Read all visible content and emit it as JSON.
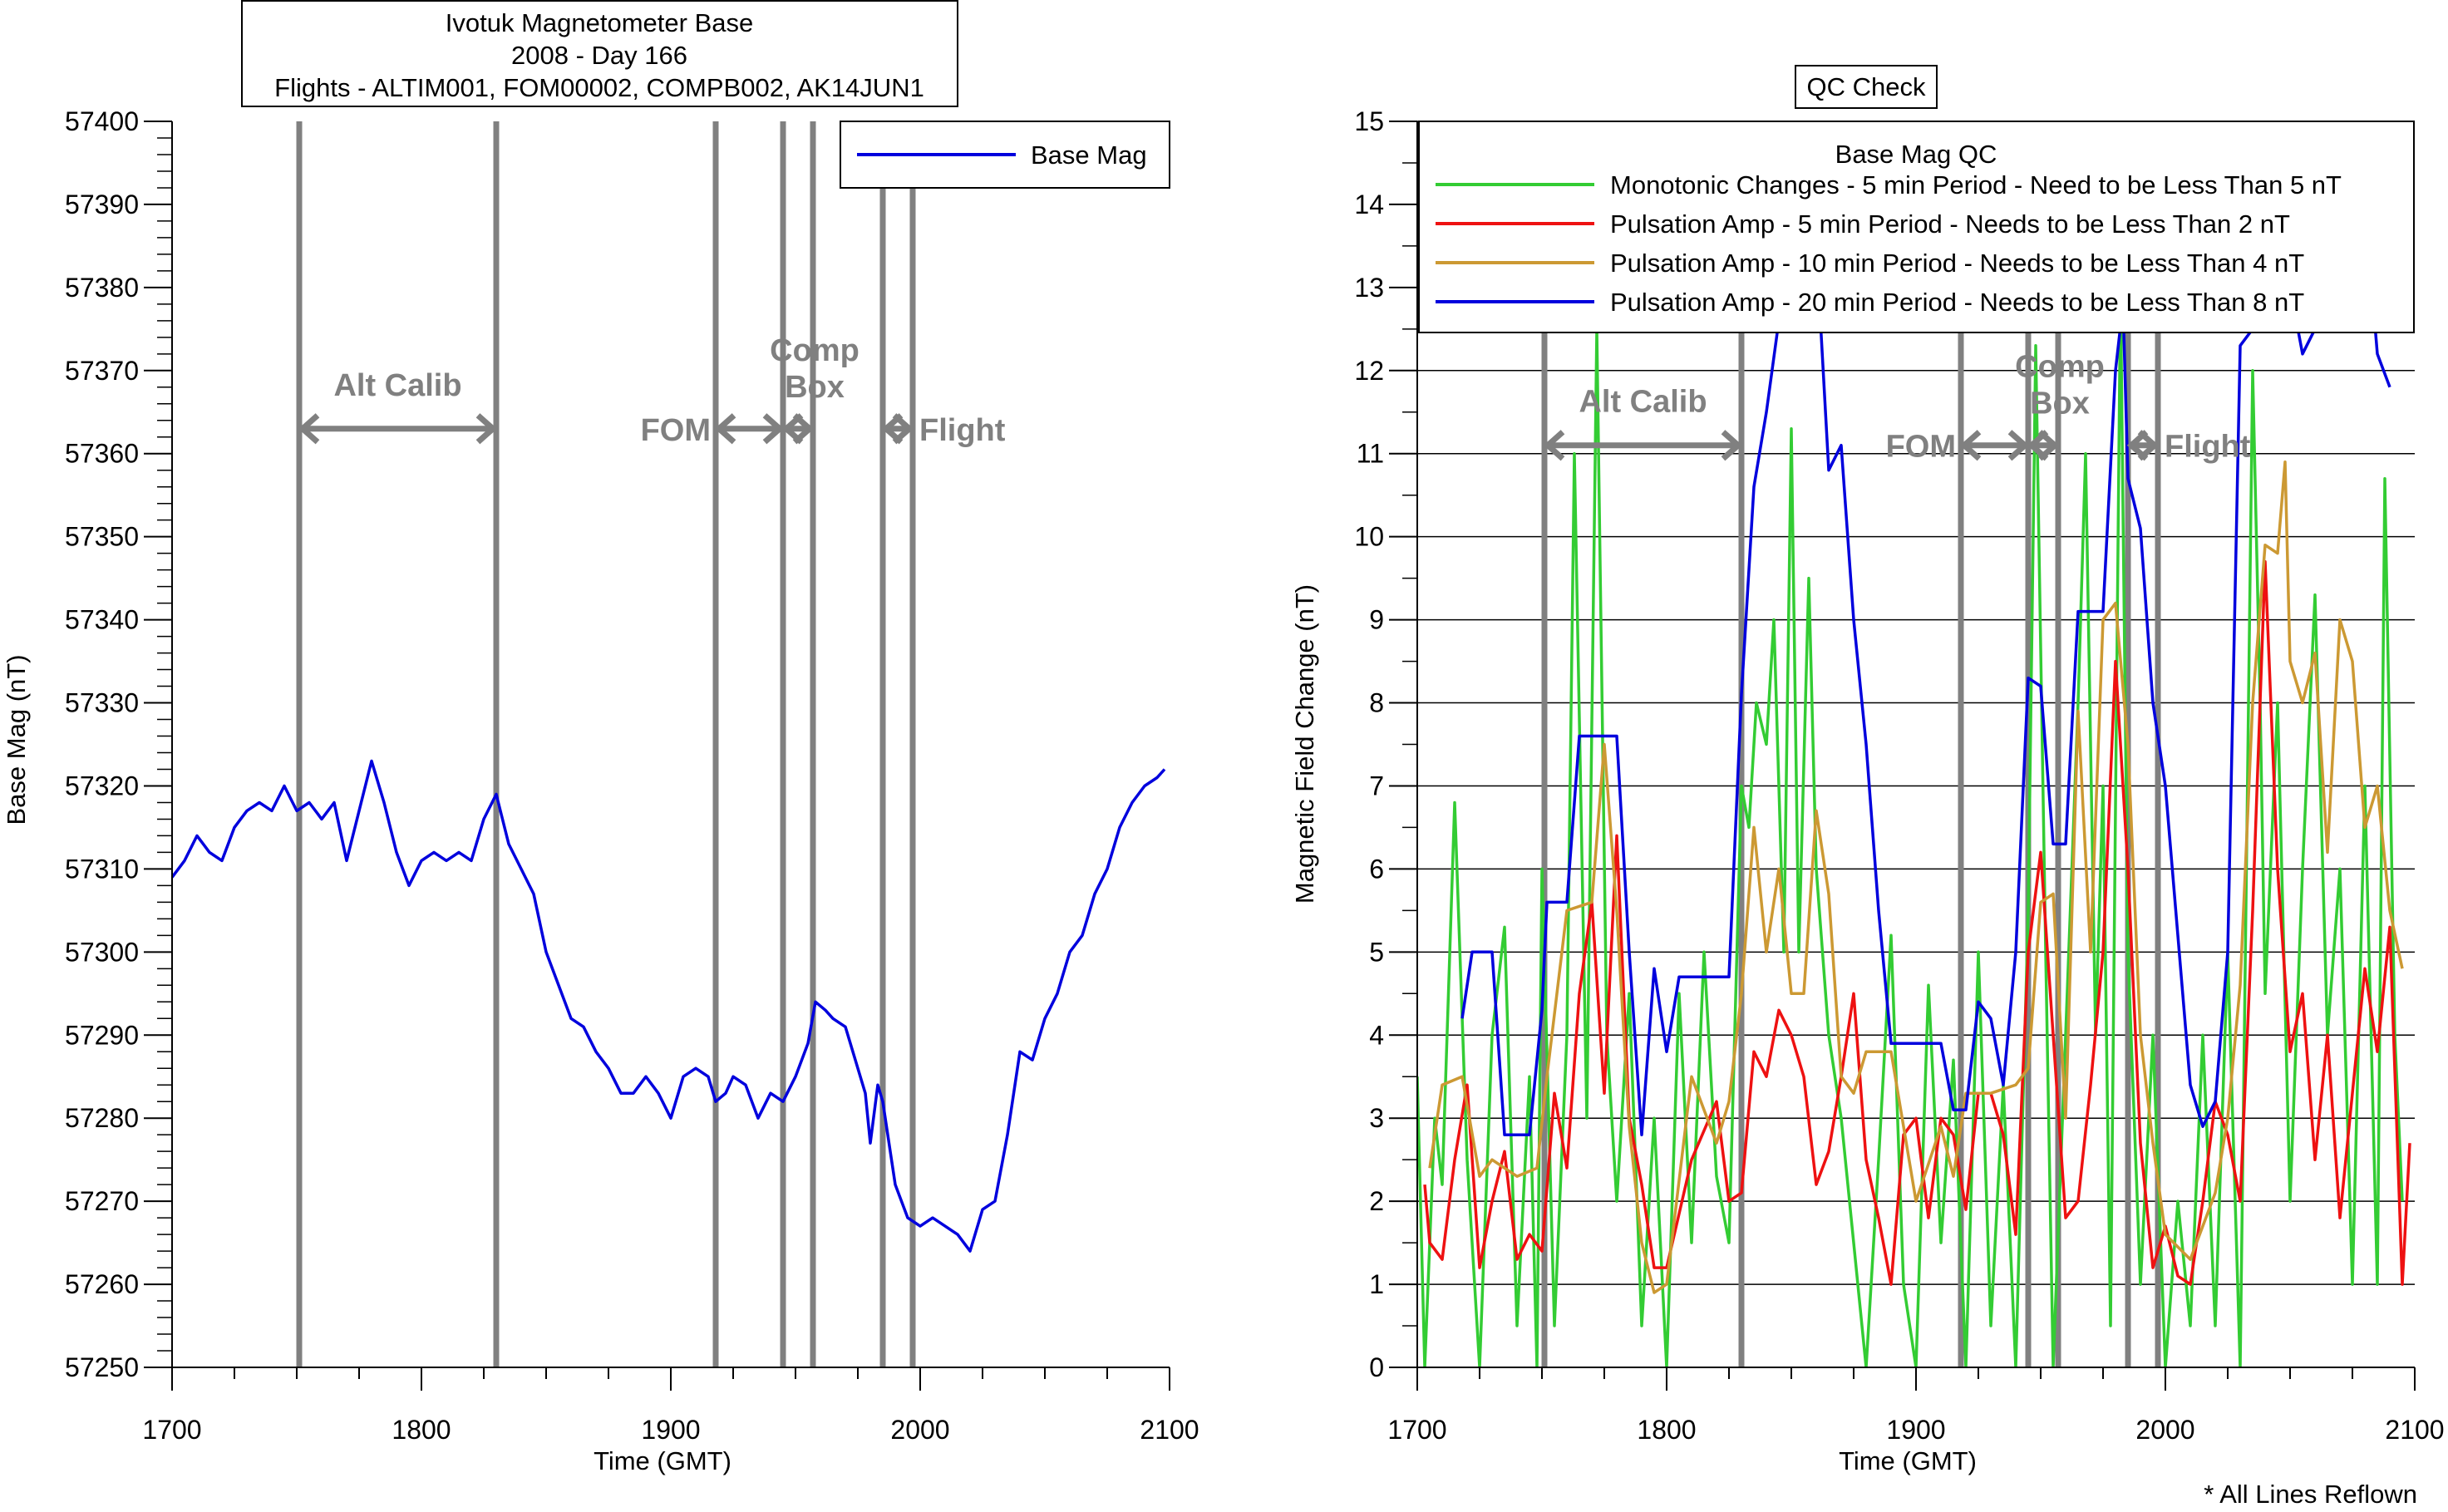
{
  "footnote": "* All Lines Reflown",
  "chart_data": [
    {
      "type": "line",
      "title_lines": [
        "Ivotuk Magnetometer Base",
        "2008 - Day 166",
        "Flights - ALTIM001, FOM00002, COMPB002, AK14JUN1"
      ],
      "xlabel": "Time (GMT)",
      "ylabel": "Base Mag (nT)",
      "xlim": [
        1700,
        2100
      ],
      "ylim": [
        57250,
        57400
      ],
      "xticks": [
        1700,
        1800,
        1900,
        2000,
        2100
      ],
      "yticks": [
        57250,
        57260,
        57270,
        57280,
        57290,
        57300,
        57310,
        57320,
        57330,
        57340,
        57350,
        57360,
        57370,
        57380,
        57390,
        57400
      ],
      "grid": false,
      "legend_placement": "top-right",
      "series": [
        {
          "name": "Base Mag",
          "color": "#0000dd",
          "x": [
            1700,
            1705,
            1710,
            1715,
            1720,
            1725,
            1730,
            1735,
            1740,
            1745,
            1750,
            1755,
            1760,
            1765,
            1770,
            1775,
            1780,
            1785,
            1790,
            1795,
            1800,
            1805,
            1810,
            1815,
            1820,
            1825,
            1830,
            1835,
            1840,
            1845,
            1850,
            1855,
            1860,
            1865,
            1870,
            1875,
            1880,
            1885,
            1890,
            1895,
            1900,
            1905,
            1910,
            1915,
            1918,
            1922,
            1925,
            1930,
            1935,
            1940,
            1945,
            1950,
            1955,
            1958,
            1962,
            1965,
            1970,
            1975,
            1978,
            1980,
            1983,
            1985,
            1988,
            1990,
            1995,
            2000,
            2005,
            2010,
            2015,
            2020,
            2025,
            2030,
            2035,
            2040,
            2045,
            2050,
            2055,
            2060,
            2065,
            2070,
            2075,
            2080,
            2085,
            2090,
            2095,
            2098
          ],
          "y": [
            57309,
            57311,
            57314,
            57312,
            57311,
            57315,
            57317,
            57318,
            57317,
            57320,
            57317,
            57318,
            57316,
            57318,
            57311,
            57317,
            57323,
            57318,
            57312,
            57308,
            57311,
            57312,
            57311,
            57312,
            57311,
            57316,
            57319,
            57313,
            57310,
            57307,
            57300,
            57296,
            57292,
            57291,
            57288,
            57286,
            57283,
            57283,
            57285,
            57283,
            57280,
            57285,
            57286,
            57285,
            57282,
            57283,
            57285,
            57284,
            57280,
            57283,
            57282,
            57285,
            57289,
            57294,
            57293,
            57292,
            57291,
            57286,
            57283,
            57277,
            57284,
            57282,
            57276,
            57272,
            57268,
            57267,
            57268,
            57267,
            57266,
            57264,
            57269,
            57270,
            57278,
            57288,
            57287,
            57292,
            57295,
            57300,
            57302,
            57307,
            57310,
            57315,
            57318,
            57320,
            57321,
            57322
          ]
        }
      ],
      "vertical_markers": [
        1751,
        1830,
        1918,
        1945,
        1957,
        1985,
        1997
      ],
      "marker_color": "#808080",
      "annotations": [
        {
          "text": "Alt Calib",
          "from": 1751,
          "to": 1830,
          "y": 57363
        },
        {
          "text": "FOM",
          "from": 1918,
          "to": 1945,
          "y": 57363
        },
        {
          "text": "Comp Box",
          "from": 1945,
          "to": 1957,
          "y": 57363
        },
        {
          "text": "Flight",
          "from": 1985,
          "to": 1997,
          "y": 57363
        }
      ]
    },
    {
      "type": "line",
      "title": "QC Check",
      "legend_title": "Base Mag QC",
      "xlabel": "Time (GMT)",
      "ylabel": "Magnetic Field Change (nT)",
      "xlim": [
        1700,
        2100
      ],
      "ylim": [
        0,
        15
      ],
      "xticks": [
        1700,
        1800,
        1900,
        2000,
        2100
      ],
      "yticks": [
        0,
        1,
        2,
        3,
        4,
        5,
        6,
        7,
        8,
        9,
        10,
        11,
        12,
        13,
        14,
        15
      ],
      "grid": true,
      "legend_placement": "top",
      "series": [
        {
          "name": "Monotonic Changes - 5 min Period - Need to be Less Than 5 nT",
          "color": "#33cc33",
          "x": [
            1700,
            1703,
            1707,
            1710,
            1715,
            1720,
            1725,
            1730,
            1735,
            1740,
            1745,
            1748,
            1750,
            1755,
            1760,
            1763,
            1768,
            1772,
            1776,
            1780,
            1785,
            1790,
            1795,
            1800,
            1805,
            1810,
            1815,
            1820,
            1825,
            1830,
            1833,
            1836,
            1840,
            1843,
            1847,
            1850,
            1853,
            1857,
            1860,
            1865,
            1870,
            1875,
            1880,
            1885,
            1890,
            1895,
            1900,
            1905,
            1910,
            1915,
            1920,
            1925,
            1930,
            1935,
            1940,
            1945,
            1948,
            1952,
            1955,
            1960,
            1965,
            1968,
            1972,
            1975,
            1978,
            1982,
            1985,
            1990,
            1995,
            2000,
            2005,
            2010,
            2015,
            2020,
            2025,
            2030,
            2035,
            2038,
            2040,
            2045,
            2050,
            2055,
            2060,
            2065,
            2070,
            2075,
            2080,
            2085,
            2088,
            2092,
            2095
          ],
          "y": [
            3.5,
            0,
            3,
            2.2,
            6.8,
            2.5,
            0,
            4,
            5.3,
            0.5,
            3.5,
            0,
            6,
            0.5,
            4,
            11,
            3,
            12.5,
            4,
            2,
            4.5,
            0.5,
            3,
            0,
            4.5,
            1.5,
            5,
            2.3,
            1.5,
            7,
            6.5,
            8,
            7.5,
            9,
            5,
            11.3,
            5,
            9.5,
            6,
            4,
            3,
            1.5,
            0,
            2.5,
            5.2,
            1,
            0,
            4.6,
            1.5,
            3.7,
            0,
            5,
            0.5,
            3.4,
            0,
            5.5,
            12.3,
            5,
            0,
            4,
            8,
            11,
            4,
            7,
            0.5,
            13,
            5,
            1,
            4,
            0,
            2,
            0.5,
            4,
            0.5,
            5,
            0,
            12,
            8,
            4.5,
            8,
            2,
            6,
            9.3,
            4,
            6,
            1,
            7,
            1,
            10.7,
            4,
            2
          ]
        },
        {
          "name": "Pulsation Amp - 5 min Period - Needs to be Less Than 2 nT",
          "color": "#ee1111",
          "x": [
            1703,
            1705,
            1710,
            1715,
            1720,
            1725,
            1730,
            1735,
            1740,
            1745,
            1750,
            1755,
            1760,
            1765,
            1770,
            1775,
            1780,
            1785,
            1790,
            1795,
            1800,
            1810,
            1820,
            1825,
            1830,
            1835,
            1840,
            1845,
            1850,
            1855,
            1860,
            1865,
            1870,
            1875,
            1880,
            1885,
            1890,
            1895,
            1900,
            1905,
            1910,
            1915,
            1920,
            1925,
            1930,
            1935,
            1940,
            1945,
            1950,
            1955,
            1960,
            1965,
            1970,
            1975,
            1980,
            1985,
            1990,
            1995,
            2000,
            2005,
            2010,
            2015,
            2020,
            2025,
            2030,
            2035,
            2040,
            2045,
            2050,
            2055,
            2060,
            2065,
            2070,
            2075,
            2080,
            2085,
            2090,
            2095,
            2098
          ],
          "y": [
            2.2,
            1.5,
            1.3,
            2.5,
            3.4,
            1.2,
            2,
            2.6,
            1.3,
            1.6,
            1.4,
            3.3,
            2.4,
            4.5,
            5.6,
            3.3,
            6.4,
            3,
            2.2,
            1.2,
            1.2,
            2.5,
            3.2,
            2,
            2.1,
            3.8,
            3.5,
            4.3,
            4,
            3.5,
            2.2,
            2.6,
            3.5,
            4.5,
            2.5,
            1.8,
            1,
            2.8,
            3,
            1.8,
            3,
            2.8,
            1.9,
            3.3,
            3.3,
            2.8,
            1.6,
            5,
            6.2,
            4,
            1.8,
            2,
            3.4,
            5,
            8.5,
            6,
            2.7,
            1.2,
            1.7,
            1.1,
            1,
            2,
            3.2,
            2.8,
            2,
            5.5,
            9.7,
            6,
            3.8,
            4.5,
            2.5,
            4,
            1.8,
            3.3,
            4.8,
            3.8,
            5.3,
            1,
            2.7
          ]
        },
        {
          "name": "Pulsation Amp - 10 min Period - Needs to be Less Than 4 nT",
          "color": "#cc9933",
          "x": [
            1705,
            1710,
            1718,
            1725,
            1730,
            1740,
            1748,
            1752,
            1760,
            1770,
            1775,
            1780,
            1785,
            1790,
            1795,
            1800,
            1810,
            1820,
            1825,
            1830,
            1835,
            1840,
            1845,
            1850,
            1855,
            1860,
            1865,
            1870,
            1875,
            1880,
            1890,
            1900,
            1910,
            1915,
            1920,
            1930,
            1940,
            1945,
            1950,
            1955,
            1960,
            1965,
            1970,
            1975,
            1980,
            1985,
            1990,
            1995,
            2000,
            2010,
            2020,
            2025,
            2030,
            2035,
            2040,
            2045,
            2048,
            2050,
            2055,
            2060,
            2065,
            2070,
            2075,
            2080,
            2085,
            2090,
            2095
          ],
          "y": [
            2.4,
            3.4,
            3.5,
            2.3,
            2.5,
            2.3,
            2.4,
            3.5,
            5.5,
            5.6,
            7.5,
            5.5,
            2.9,
            1.5,
            0.9,
            1,
            3.5,
            2.7,
            3.2,
            4.5,
            6.5,
            5,
            6,
            4.5,
            4.5,
            6.7,
            5.7,
            3.5,
            3.3,
            3.8,
            3.8,
            2,
            2.9,
            2.3,
            3.3,
            3.3,
            3.4,
            3.6,
            5.6,
            5.7,
            3,
            7.9,
            5,
            9,
            9.2,
            7.5,
            4,
            2.7,
            1.6,
            1.3,
            2.1,
            3,
            4.6,
            8,
            9.9,
            9.8,
            10.9,
            8.5,
            8,
            8.6,
            6.2,
            9,
            8.5,
            6.5,
            7,
            5.5,
            4.8
          ]
        },
        {
          "name": "Pulsation Amp - 20 min Period - Needs to be Less Than 8 nT",
          "color": "#0000dd",
          "x": [
            1718,
            1722,
            1730,
            1735,
            1745,
            1750,
            1752,
            1760,
            1765,
            1780,
            1785,
            1790,
            1795,
            1800,
            1805,
            1825,
            1830,
            1835,
            1840,
            1845,
            1850,
            1855,
            1860,
            1865,
            1870,
            1875,
            1880,
            1885,
            1890,
            1910,
            1915,
            1920,
            1925,
            1930,
            1935,
            1940,
            1945,
            1950,
            1955,
            1960,
            1965,
            1975,
            1980,
            1983,
            1985,
            1990,
            1995,
            2000,
            2005,
            2010,
            2015,
            2020,
            2025,
            2030,
            2035,
            2040,
            2045,
            2050,
            2055,
            2060,
            2065,
            2070,
            2080,
            2085,
            2090
          ],
          "y": [
            4.2,
            5,
            5,
            2.8,
            2.8,
            4.3,
            5.6,
            5.6,
            7.6,
            7.6,
            5,
            2.8,
            4.8,
            3.8,
            4.7,
            4.7,
            8.1,
            10.6,
            11.5,
            12.6,
            13.5,
            12.5,
            13.5,
            10.8,
            11.1,
            9,
            7.5,
            5.5,
            3.9,
            3.9,
            3.1,
            3.1,
            4.4,
            4.2,
            3.4,
            5,
            8.3,
            8.2,
            6.3,
            6.3,
            9.1,
            9.1,
            12,
            12.8,
            10.7,
            10.1,
            8,
            7,
            5.2,
            3.4,
            2.9,
            3.2,
            5,
            12.3,
            12.5,
            13.5,
            14,
            13,
            12.2,
            12.5,
            14,
            12.5,
            14,
            12.2,
            11.8
          ]
        }
      ],
      "vertical_markers": [
        1751,
        1830,
        1918,
        1945,
        1957,
        1985,
        1997
      ],
      "marker_color": "#808080",
      "annotations": [
        {
          "text": "Alt Calib",
          "from": 1751,
          "to": 1830,
          "y": 11.1
        },
        {
          "text": "FOM",
          "from": 1918,
          "to": 1945,
          "y": 11.1
        },
        {
          "text": "Comp Box",
          "from": 1945,
          "to": 1957,
          "y": 11.1
        },
        {
          "text": "Flight",
          "from": 1985,
          "to": 1997,
          "y": 11.1
        }
      ]
    }
  ]
}
